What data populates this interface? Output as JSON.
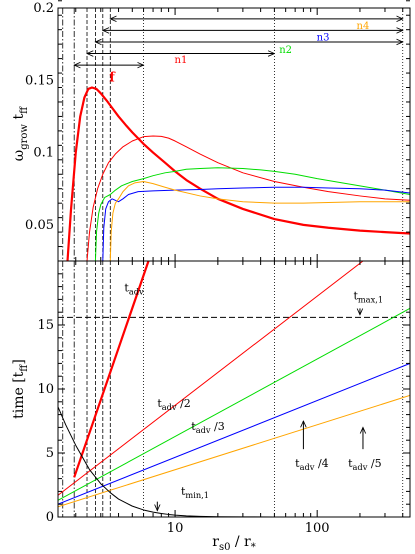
{
  "chart_data": [
    {
      "type": "line",
      "panel": "top",
      "xscale": "log",
      "xlim": [
        1.5,
        450
      ],
      "ylim": [
        0.025,
        0.2
      ],
      "grid": false,
      "ylabel": {
        "main": "ω",
        "sub1": "grow",
        "mid": " t",
        "sub2": "ff"
      },
      "y_ticks": [
        "0.05",
        "0.1",
        "0.15",
        "0.2"
      ],
      "y_tick_values": [
        0.05,
        0.1,
        0.15,
        0.2
      ],
      "series": [
        {
          "name": "f",
          "color": "#ff0000",
          "width": 2.2,
          "x": [
            1.75,
            1.85,
            2.0,
            2.15,
            2.3,
            2.45,
            2.6,
            2.8,
            3.0,
            3.3,
            3.6,
            4.0,
            4.5,
            5.0,
            6.0,
            7.0,
            8.5,
            10.0,
            12.0,
            15.0,
            20.0,
            30.0,
            50.0,
            80.0,
            120.0,
            200.0,
            300.0,
            450.0
          ],
          "y": [
            0.025,
            0.06,
            0.1,
            0.125,
            0.138,
            0.144,
            0.145,
            0.144,
            0.141,
            0.136,
            0.131,
            0.125,
            0.119,
            0.114,
            0.106,
            0.1,
            0.093,
            0.087,
            0.081,
            0.075,
            0.068,
            0.061,
            0.054,
            0.05,
            0.048,
            0.046,
            0.045,
            0.044
          ]
        },
        {
          "name": "n1",
          "color": "#ff0000",
          "width": 1,
          "x": [
            2.4,
            2.5,
            2.65,
            2.85,
            3.1,
            3.4,
            3.8,
            4.3,
            5.0,
            6.0,
            7.0,
            8.0,
            9.0,
            10.0,
            12.0,
            15.0,
            20.0,
            30.0,
            50.0,
            80.0,
            120.0,
            200.0,
            300.0,
            450.0
          ],
          "y": [
            0.025,
            0.045,
            0.062,
            0.075,
            0.085,
            0.093,
            0.099,
            0.104,
            0.108,
            0.111,
            0.1115,
            0.1112,
            0.11,
            0.108,
            0.104,
            0.099,
            0.093,
            0.086,
            0.08,
            0.076,
            0.073,
            0.07,
            0.068,
            0.067
          ]
        },
        {
          "name": "n2",
          "color": "#00dd00",
          "width": 1,
          "x": [
            2.75,
            2.8,
            2.9,
            3.0,
            3.2,
            3.5,
            3.8,
            4.2,
            5.0,
            6.0,
            7.0,
            8.5,
            10.0,
            12.0,
            15.0,
            20.0,
            30.0,
            40.0,
            50.0,
            70.0,
            100.0,
            150.0,
            200.0,
            300.0,
            450.0
          ],
          "y": [
            0.025,
            0.045,
            0.058,
            0.064,
            0.069,
            0.071,
            0.074,
            0.077,
            0.08,
            0.082,
            0.084,
            0.086,
            0.087,
            0.0885,
            0.089,
            0.0895,
            0.089,
            0.088,
            0.087,
            0.085,
            0.082,
            0.079,
            0.077,
            0.074,
            0.071
          ]
        },
        {
          "name": "n3",
          "color": "#0000ff",
          "width": 1,
          "x": [
            3.1,
            3.15,
            3.25,
            3.4,
            3.6,
            3.8,
            4.0,
            4.3,
            4.7,
            5.5,
            7.0,
            10.0,
            15.0,
            20.0,
            30.0,
            50.0,
            80.0,
            120.0,
            200.0,
            300.0,
            450.0
          ],
          "y": [
            0.025,
            0.048,
            0.061,
            0.066,
            0.068,
            0.067,
            0.066,
            0.068,
            0.071,
            0.073,
            0.0735,
            0.074,
            0.0745,
            0.075,
            0.0755,
            0.076,
            0.076,
            0.0755,
            0.075,
            0.074,
            0.072
          ]
        },
        {
          "name": "n4",
          "color": "#ffa500",
          "width": 1,
          "x": [
            3.5,
            3.55,
            3.65,
            3.8,
            4.0,
            4.3,
            4.7,
            5.2,
            6.0,
            7.0,
            8.5,
            10.0,
            15.0,
            20.0,
            30.0,
            50.0,
            80.0,
            120.0,
            200.0,
            300.0,
            450.0
          ],
          "y": [
            0.025,
            0.045,
            0.058,
            0.065,
            0.068,
            0.073,
            0.077,
            0.079,
            0.08,
            0.0785,
            0.076,
            0.074,
            0.07,
            0.068,
            0.066,
            0.065,
            0.065,
            0.0655,
            0.066,
            0.066,
            0.066
          ]
        }
      ],
      "vlines": {
        "dash_dot_x": [
          1.62,
          1.95
        ],
        "dashed_x": [
          2.4,
          2.75,
          3.1,
          3.5
        ],
        "dotted_x": [
          6.0,
          50.0,
          400.0
        ]
      },
      "arrows": [
        {
          "label": "f",
          "color": "#ff0000",
          "x_start": 1.95,
          "x_end": 6.0,
          "y": 0.1605,
          "label_x": 3.6,
          "label_y": 0.149,
          "bold": true,
          "size": 13
        },
        {
          "label": "n1",
          "color": "#ff0000",
          "x_start": 2.4,
          "x_end": 50.0,
          "y": 0.1685,
          "label_x": 11.0,
          "label_y": 0.162,
          "bold": false,
          "size": 10
        },
        {
          "label": "n2",
          "color": "#00dd00",
          "x_start": 2.75,
          "x_end": 400.0,
          "y": 0.1765,
          "label_x": 60.0,
          "label_y": 0.169,
          "bold": false,
          "size": 10
        },
        {
          "label": "n3",
          "color": "#0000ff",
          "x_start": 3.1,
          "x_end": 400.0,
          "y": 0.1845,
          "label_x": 110.0,
          "label_y": 0.1775,
          "bold": false,
          "size": 10
        },
        {
          "label": "n4",
          "color": "#ffa500",
          "x_start": 3.5,
          "x_end": 400.0,
          "y": 0.1925,
          "label_x": 210.0,
          "label_y": 0.1855,
          "bold": false,
          "size": 10
        }
      ]
    },
    {
      "type": "line",
      "panel": "bottom",
      "xscale": "log",
      "xlim": [
        1.5,
        450
      ],
      "ylim": [
        0,
        20
      ],
      "grid": false,
      "xlabel": {
        "main": "r",
        "sub1": "s0",
        "mid": " / r",
        "sub2": "*"
      },
      "ylabel": {
        "main": "time [t",
        "sub1": "ff",
        "end": "]"
      },
      "x_ticks": [
        "10",
        "100"
      ],
      "x_tick_values": [
        10,
        100
      ],
      "y_ticks": [
        "0",
        "5",
        "10",
        "15"
      ],
      "y_tick_values": [
        0,
        5,
        10,
        15
      ],
      "series": [
        {
          "name": "t_adv (f)",
          "color": "#ff0000",
          "width": 2.2,
          "x": [
            1.95,
            6.5
          ],
          "y": [
            3.1,
            20.0
          ]
        },
        {
          "name": "t_adv/2",
          "color": "#ff0000",
          "width": 1,
          "x": [
            1.5,
            210.0
          ],
          "y": [
            1.7,
            20.0
          ]
        },
        {
          "name": "t_adv/3",
          "color": "#00dd00",
          "width": 1,
          "x": [
            1.5,
            450.0
          ],
          "y": [
            1.3,
            16.3
          ]
        },
        {
          "name": "t_adv/4",
          "color": "#0000ff",
          "width": 1,
          "x": [
            1.5,
            450.0
          ],
          "y": [
            1.0,
            12.0
          ]
        },
        {
          "name": "t_adv/5",
          "color": "#ffa500",
          "width": 1,
          "x": [
            1.5,
            450.0
          ],
          "y": [
            0.8,
            9.5
          ]
        },
        {
          "name": "t_min,1",
          "color": "#000000",
          "width": 1,
          "x": [
            1.5,
            1.7,
            2.0,
            2.5,
            3.0,
            3.5,
            4.0,
            5.0,
            6.0,
            7.0,
            8.0,
            9.0,
            10.0,
            12.0,
            15.0,
            20.0,
            30.0,
            50.0,
            100.0,
            450.0
          ],
          "y": [
            8.6,
            7.2,
            5.6,
            3.7,
            2.6,
            1.9,
            1.4,
            0.85,
            0.55,
            0.38,
            0.27,
            0.2,
            0.15,
            0.09,
            0.05,
            0.02,
            0.01,
            0.0,
            0.0,
            0.0
          ]
        }
      ],
      "hline": {
        "y": 15.6,
        "style": "dashed"
      },
      "vlines": {
        "dash_dot_x": [
          1.62,
          1.95
        ],
        "dashed_x": [
          2.4,
          2.75,
          3.1,
          3.5
        ],
        "dotted_x": [
          6.0,
          50.0,
          400.0
        ]
      },
      "annotations": [
        {
          "parts": [
            [
              "t",
              ""
            ],
            [
              "adv",
              "sub"
            ]
          ],
          "x": 4.4,
          "y": 17.6
        },
        {
          "parts": [
            [
              "t",
              ""
            ],
            [
              "adv",
              "sub"
            ],
            [
              " /2",
              ""
            ]
          ],
          "x": 7.5,
          "y": 8.6
        },
        {
          "parts": [
            [
              "t",
              ""
            ],
            [
              "adv",
              "sub"
            ],
            [
              " /3",
              ""
            ]
          ],
          "x": 13.0,
          "y": 6.8
        },
        {
          "parts": [
            [
              "t",
              ""
            ],
            [
              "adv",
              "sub"
            ],
            [
              " /4",
              ""
            ]
          ],
          "x": 70.0,
          "y": 3.9
        },
        {
          "parts": [
            [
              "t",
              ""
            ],
            [
              "adv",
              "sub"
            ],
            [
              " /5",
              ""
            ]
          ],
          "x": 165.0,
          "y": 3.9
        },
        {
          "parts": [
            [
              "t",
              ""
            ],
            [
              "max,1",
              "sub"
            ]
          ],
          "x": 180.0,
          "y": 17.0
        },
        {
          "parts": [
            [
              "t",
              ""
            ],
            [
              "min,1",
              "sub"
            ]
          ],
          "x": 11.0,
          "y": 1.7
        }
      ],
      "pointer_arrows": [
        {
          "x": 200.0,
          "y_from": 16.3,
          "y_to": 15.8
        },
        {
          "x": 80.0,
          "y_from": 5.3,
          "y_to": 7.5
        },
        {
          "x": 210.0,
          "y_from": 5.3,
          "y_to": 7.0
        },
        {
          "x": 7.5,
          "y_from": 1.2,
          "y_to": 0.5
        }
      ]
    }
  ]
}
